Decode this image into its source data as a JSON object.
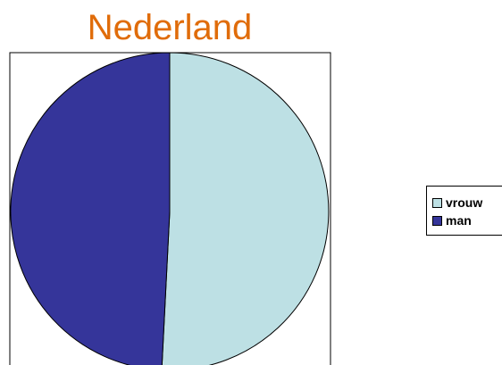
{
  "chart_data": {
    "type": "pie",
    "title": "Nederland",
    "title_color": "#E06C0A",
    "slices": [
      {
        "label": "vrouw",
        "value": 50.8,
        "color": "#BDE0E4"
      },
      {
        "label": "man",
        "value": 49.2,
        "color": "#35359A"
      }
    ],
    "start_angle_deg": 0,
    "direction": "clockwise",
    "legend_position": "right"
  }
}
